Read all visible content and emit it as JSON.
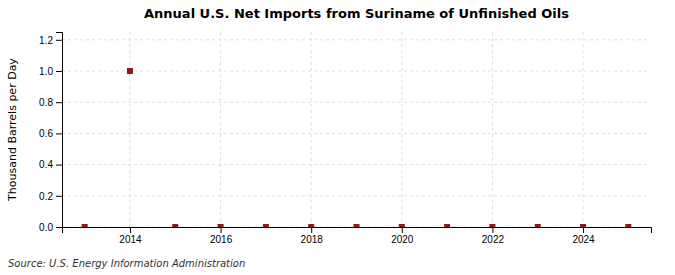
{
  "chart_data": {
    "type": "scatter",
    "title": "Annual U.S. Net Imports from Suriname of Unfinished Oils",
    "ylabel": "Thousand Barrels per Day",
    "source": "Source: U.S. Energy Information Administration",
    "x": [
      2013,
      2014,
      2015,
      2016,
      2017,
      2018,
      2019,
      2020,
      2021,
      2022,
      2023,
      2024,
      2025
    ],
    "values": [
      0.0,
      1.0,
      0.0,
      0.0,
      0.0,
      0.0,
      0.0,
      0.0,
      0.0,
      0.0,
      0.0,
      0.0,
      0.0
    ],
    "color": "#8b1a1a",
    "marker": "square",
    "xlim": [
      2012.5,
      2025.5
    ],
    "ylim": [
      0.0,
      1.25
    ],
    "xticks": [
      2014,
      2016,
      2018,
      2020,
      2022,
      2024
    ],
    "yticks": [
      {
        "value": 0.0,
        "label": "0.0"
      },
      0.2,
      0.4,
      0.6,
      0.8,
      {
        "value": 1.0,
        "label": "1.0"
      },
      1.2
    ],
    "grid": true
  }
}
